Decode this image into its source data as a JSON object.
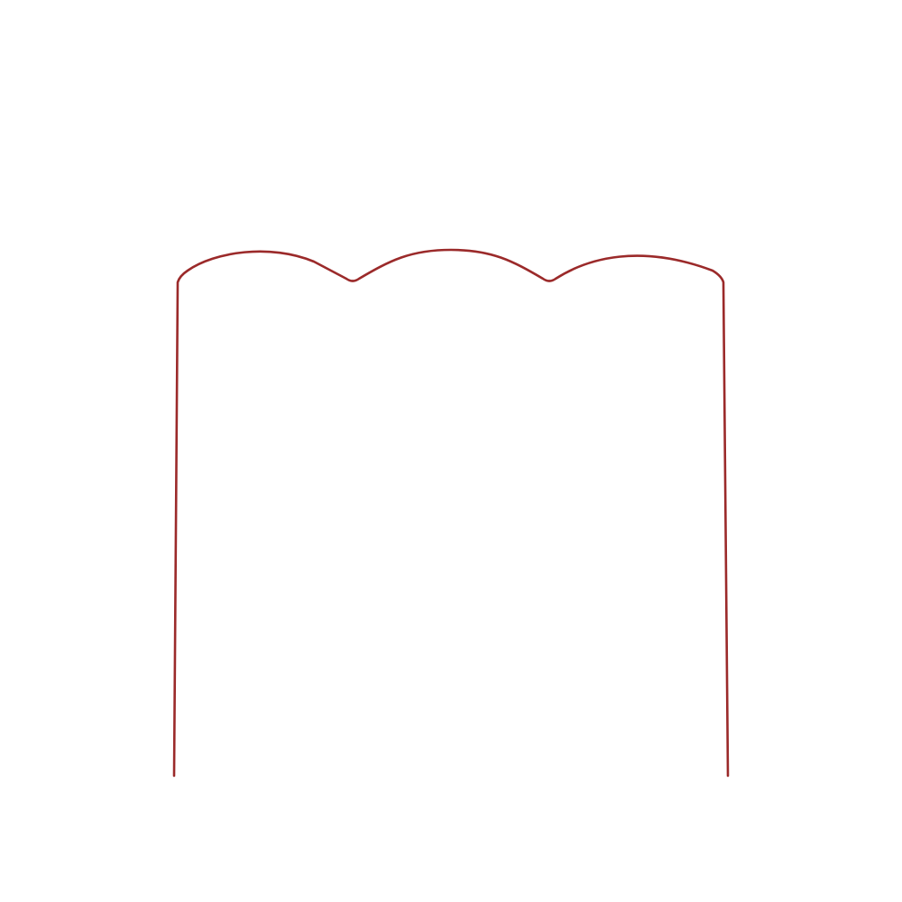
{
  "figure": {
    "subject": "scalloped-arch-hoop",
    "stroke_color": "#9b2a2a",
    "background_color": "#ffffff"
  }
}
